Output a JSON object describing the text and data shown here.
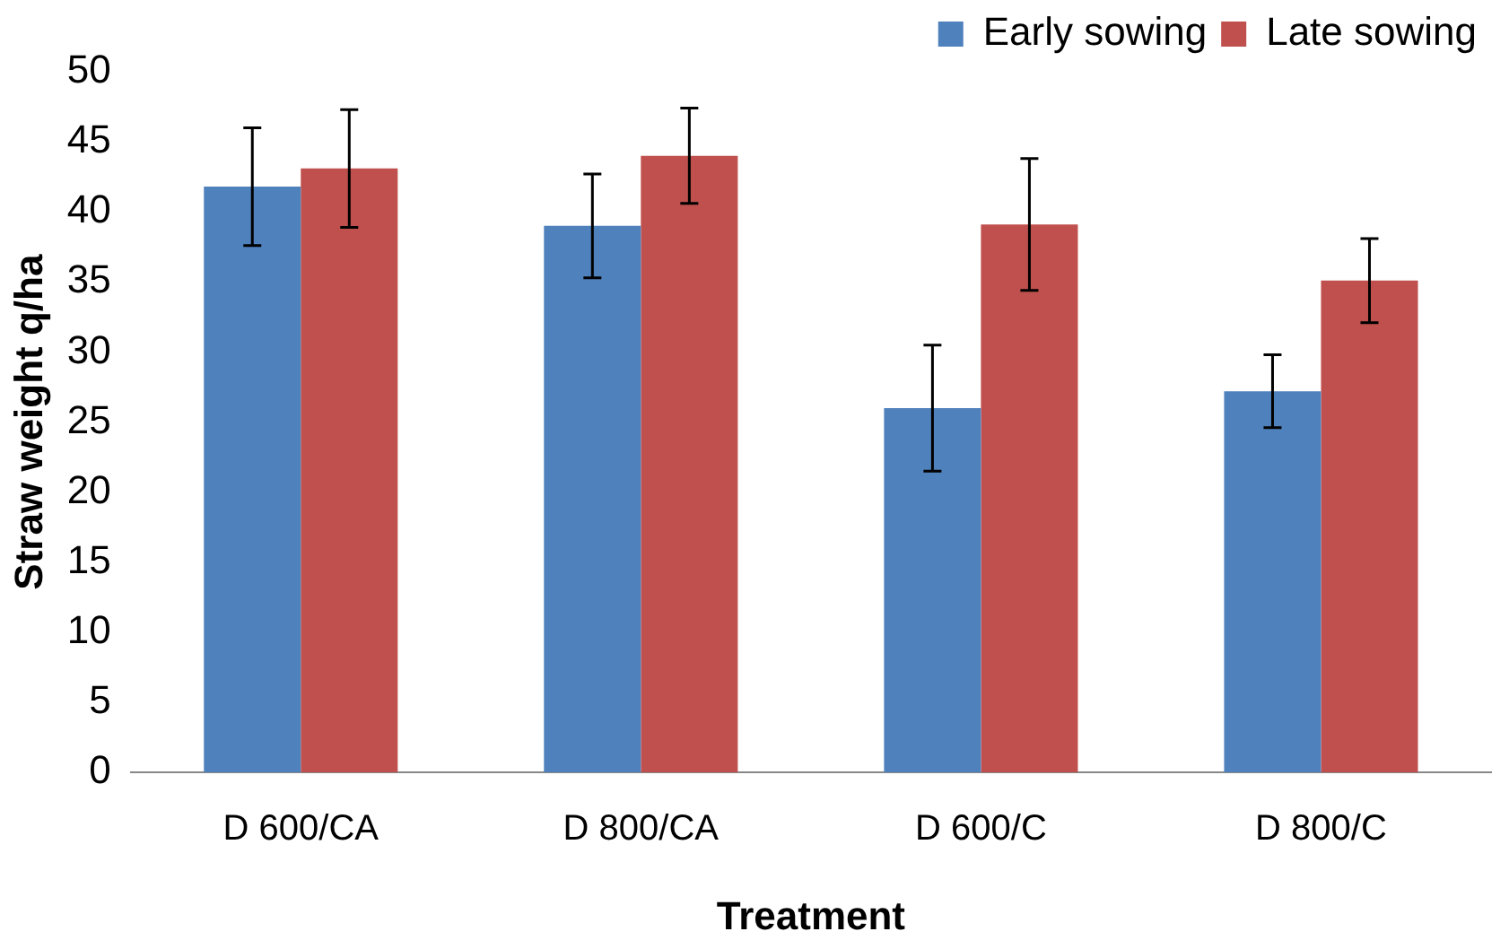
{
  "chart_data": {
    "type": "bar",
    "xlabel": "Treatment",
    "ylabel": "Straw weight q/ha",
    "categories": [
      "D 600/CA",
      "D 800/CA",
      "D 600/C",
      "D 800/C"
    ],
    "series": [
      {
        "name": "Early sowing",
        "color": "#4f81bd",
        "values": [
          41.8,
          39.0,
          26.0,
          27.2
        ],
        "errors": [
          4.2,
          3.7,
          4.5,
          2.6
        ]
      },
      {
        "name": "Late sowing",
        "color": "#c0504d",
        "values": [
          43.1,
          44.0,
          39.1,
          35.1
        ],
        "errors": [
          4.2,
          3.4,
          4.7,
          3.0
        ]
      }
    ],
    "ylim": [
      0,
      50
    ],
    "yticks": [
      0,
      5,
      10,
      15,
      20,
      25,
      30,
      35,
      40,
      45,
      50
    ],
    "grid": false,
    "legend": "top"
  }
}
